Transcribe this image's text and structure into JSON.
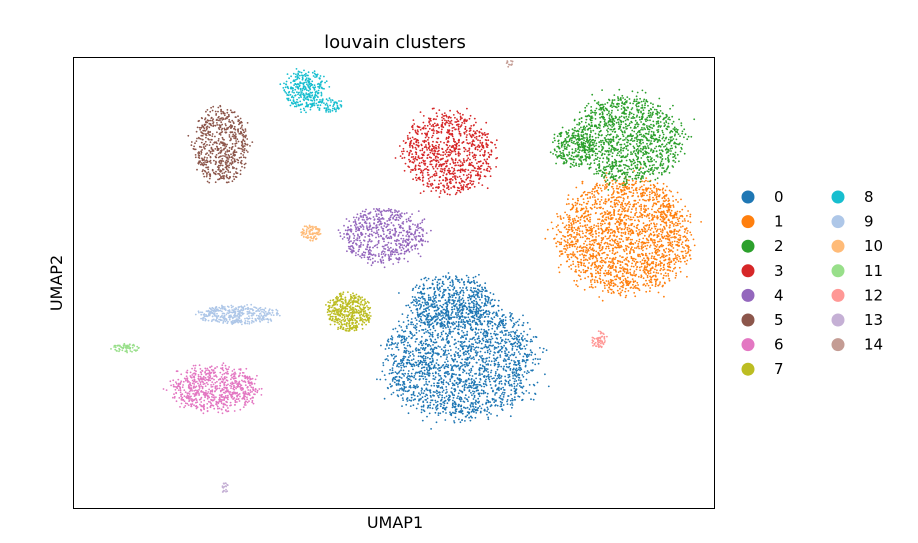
{
  "chart_data": {
    "type": "scatter",
    "title": "louvain clusters",
    "xlabel": "UMAP1",
    "ylabel": "UMAP2",
    "xlim": [
      0,
      100
    ],
    "ylim": [
      0,
      100
    ],
    "grid": false,
    "ticks": false,
    "legend": {
      "placement": "right",
      "columns": 2
    },
    "series": [
      {
        "name": "0",
        "color": "#1f77b4",
        "n": 2600,
        "clusters": [
          {
            "cx": 60.5,
            "cy": 33.0,
            "rx": 12.5,
            "ry": 14.0
          },
          {
            "cx": 59.0,
            "cy": 46.0,
            "rx": 7.0,
            "ry": 6.0
          }
        ]
      },
      {
        "name": "1",
        "color": "#ff7f0e",
        "n": 2000,
        "clusters": [
          {
            "cx": 86.0,
            "cy": 60.5,
            "rx": 11.0,
            "ry": 13.5
          }
        ]
      },
      {
        "name": "2",
        "color": "#2ca02c",
        "n": 1500,
        "clusters": [
          {
            "cx": 86.5,
            "cy": 82.0,
            "rx": 9.0,
            "ry": 10.0
          },
          {
            "cx": 78.0,
            "cy": 80.0,
            "rx": 3.5,
            "ry": 4.5
          }
        ]
      },
      {
        "name": "3",
        "color": "#d62728",
        "n": 900,
        "clusters": [
          {
            "cx": 58.5,
            "cy": 79.0,
            "rx": 7.5,
            "ry": 9.5
          }
        ]
      },
      {
        "name": "4",
        "color": "#9467bd",
        "n": 600,
        "clusters": [
          {
            "cx": 48.5,
            "cy": 60.5,
            "rx": 7.0,
            "ry": 6.5
          }
        ]
      },
      {
        "name": "5",
        "color": "#8c564b",
        "n": 600,
        "clusters": [
          {
            "cx": 23.0,
            "cy": 80.5,
            "rx": 4.5,
            "ry": 9.0
          }
        ]
      },
      {
        "name": "6",
        "color": "#e377c2",
        "n": 700,
        "clusters": [
          {
            "cx": 22.0,
            "cy": 26.5,
            "rx": 7.0,
            "ry": 5.5
          }
        ]
      },
      {
        "name": "7",
        "color": "#bcbd22",
        "n": 450,
        "clusters": [
          {
            "cx": 43.0,
            "cy": 43.5,
            "rx": 3.5,
            "ry": 4.5
          }
        ]
      },
      {
        "name": "8",
        "color": "#17becf",
        "n": 380,
        "clusters": [
          {
            "cx": 36.0,
            "cy": 93.0,
            "rx": 3.5,
            "ry": 4.5
          },
          {
            "cx": 40.0,
            "cy": 89.5,
            "rx": 2.2,
            "ry": 1.5
          }
        ]
      },
      {
        "name": "9",
        "color": "#aec7e8",
        "n": 380,
        "clusters": [
          {
            "cx": 25.5,
            "cy": 43.0,
            "rx": 6.5,
            "ry": 2.2
          }
        ]
      },
      {
        "name": "10",
        "color": "#ffbb78",
        "n": 90,
        "clusters": [
          {
            "cx": 37.0,
            "cy": 61.0,
            "rx": 1.8,
            "ry": 1.8
          }
        ]
      },
      {
        "name": "11",
        "color": "#98df8a",
        "n": 60,
        "clusters": [
          {
            "cx": 8.0,
            "cy": 35.5,
            "rx": 2.5,
            "ry": 1.0
          }
        ]
      },
      {
        "name": "12",
        "color": "#ff9896",
        "n": 60,
        "clusters": [
          {
            "cx": 82.0,
            "cy": 37.5,
            "rx": 1.2,
            "ry": 2.0
          }
        ]
      },
      {
        "name": "13",
        "color": "#c5b0d5",
        "n": 20,
        "clusters": [
          {
            "cx": 23.5,
            "cy": 4.5,
            "rx": 0.7,
            "ry": 1.2
          }
        ]
      },
      {
        "name": "14",
        "color": "#c49c94",
        "n": 12,
        "clusters": [
          {
            "cx": 68.0,
            "cy": 99.0,
            "rx": 0.6,
            "ry": 1.0
          }
        ]
      }
    ]
  }
}
